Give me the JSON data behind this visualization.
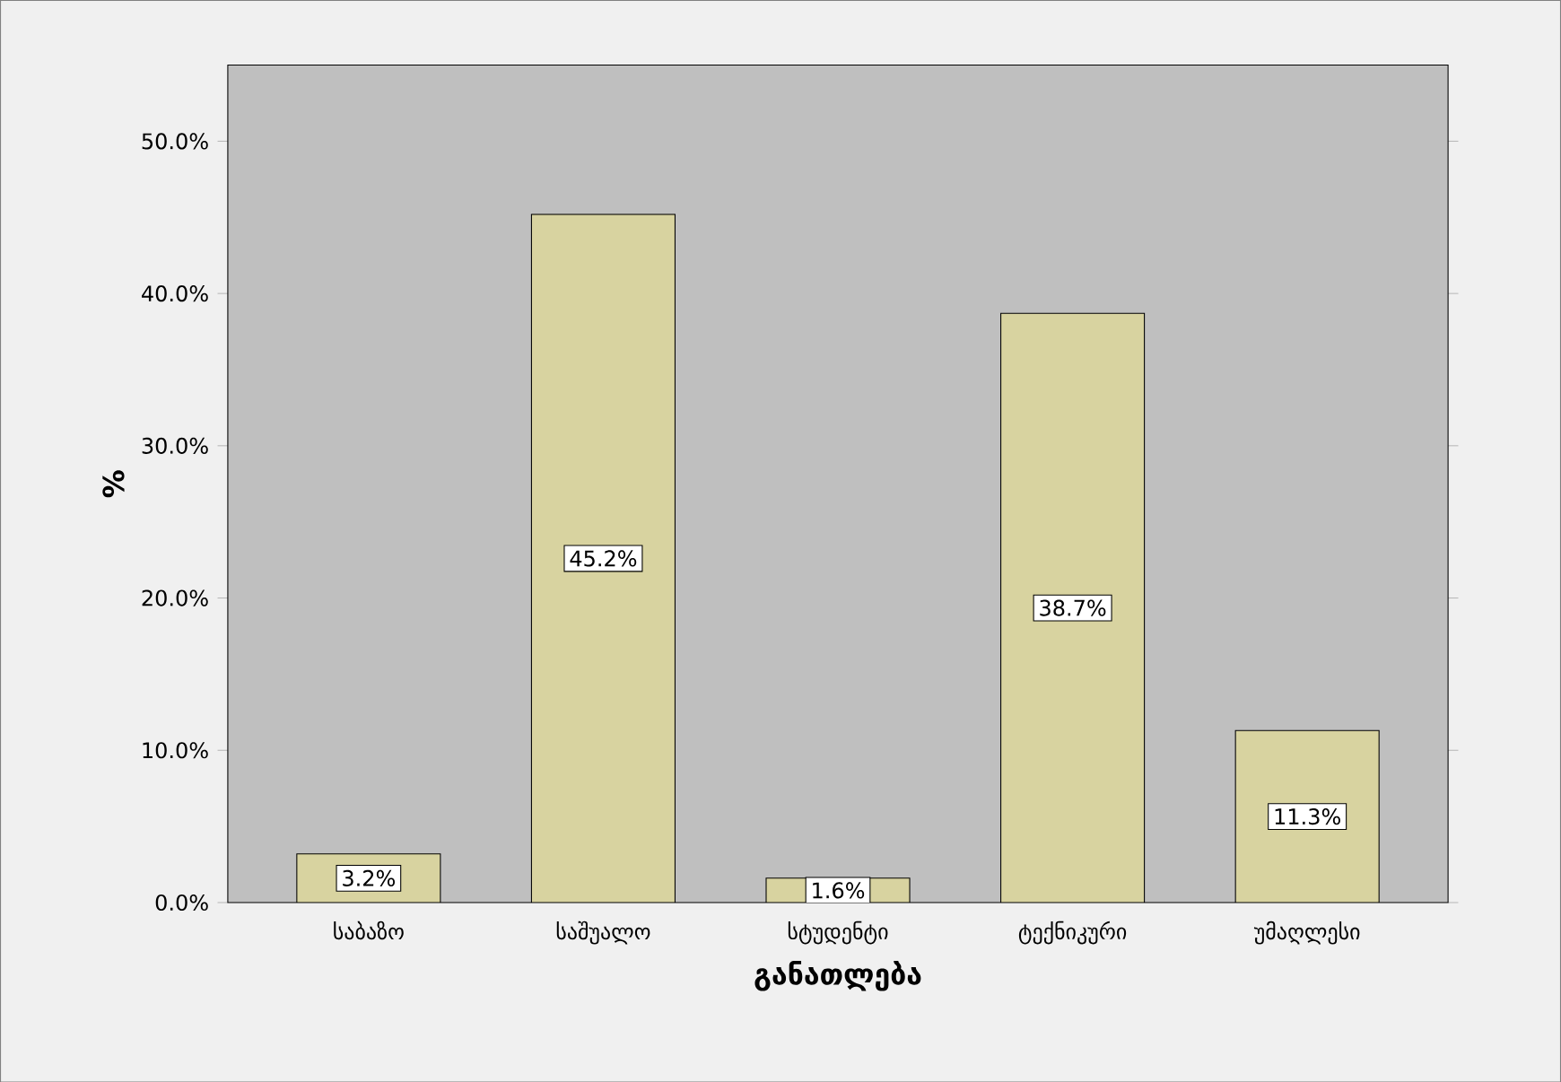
{
  "chart_data": {
    "type": "bar",
    "xlabel": "განათლება",
    "ylabel": "%",
    "categories": [
      "საბაზო",
      "საშუალო",
      "სტუდენტი",
      "ტექნიკური",
      "უმაღლესი"
    ],
    "values": [
      3.2,
      45.2,
      1.6,
      38.7,
      11.3
    ],
    "value_labels": [
      "3.2%",
      "45.2%",
      "1.6%",
      "38.7%",
      "11.3%"
    ],
    "color": "#d8d3a0",
    "ylim": [
      0,
      55
    ],
    "yticks": [
      {
        "value": 0,
        "label": "0.0%"
      },
      {
        "value": 10,
        "label": "10.0%"
      },
      {
        "value": 20,
        "label": "20.0%"
      },
      {
        "value": 30,
        "label": "30.0%"
      },
      {
        "value": 40,
        "label": "40.0%"
      },
      {
        "value": 50,
        "label": "50.0%"
      }
    ],
    "grid": false
  }
}
